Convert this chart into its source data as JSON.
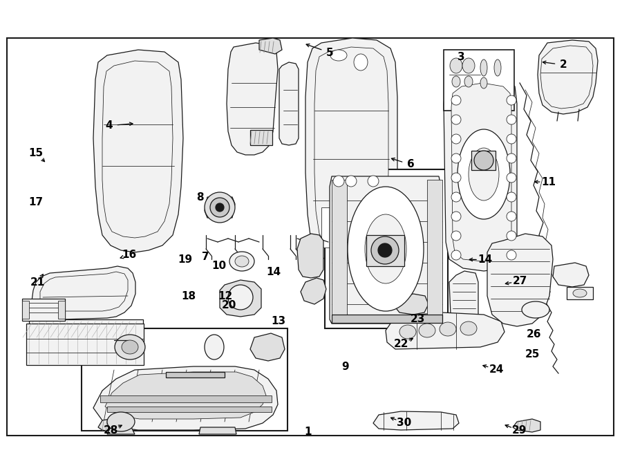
{
  "figsize": [
    9.0,
    6.61
  ],
  "dpi": 100,
  "bg_color": "#ffffff",
  "border_color": "#000000",
  "label_positions": {
    "1": [
      0.495,
      0.033,
      null,
      null
    ],
    "2": [
      0.906,
      0.858,
      0.875,
      0.858
    ],
    "3": [
      0.742,
      0.87,
      null,
      null
    ],
    "4": [
      0.175,
      0.735,
      0.215,
      0.735
    ],
    "5": [
      0.53,
      0.89,
      0.495,
      0.882
    ],
    "6": [
      0.66,
      0.672,
      0.628,
      0.68
    ],
    "7": [
      0.33,
      0.556,
      null,
      null
    ],
    "8": [
      0.322,
      0.63,
      null,
      null
    ],
    "9": [
      0.555,
      0.235,
      null,
      null
    ],
    "10": [
      0.352,
      0.556,
      null,
      null
    ],
    "11": [
      0.882,
      0.608,
      0.858,
      0.608
    ],
    "12": [
      0.362,
      0.51,
      null,
      null
    ],
    "13": [
      0.448,
      0.368,
      null,
      null
    ],
    "14a": [
      0.44,
      0.635,
      null,
      null
    ],
    "14b": [
      0.68,
      0.422,
      0.72,
      0.432
    ],
    "15": [
      0.058,
      0.693,
      0.075,
      0.71
    ],
    "16": [
      0.208,
      0.54,
      0.185,
      0.548
    ],
    "17": [
      0.058,
      0.588,
      null,
      null
    ],
    "18": [
      0.303,
      0.505,
      null,
      null
    ],
    "19": [
      0.298,
      0.568,
      null,
      null
    ],
    "20": [
      0.368,
      0.495,
      null,
      null
    ],
    "21": [
      0.06,
      0.412,
      0.07,
      0.432
    ],
    "22": [
      0.645,
      0.218,
      0.668,
      0.23
    ],
    "23": [
      0.672,
      0.302,
      null,
      null
    ],
    "24": [
      0.798,
      0.162,
      0.775,
      0.168
    ],
    "25": [
      0.856,
      0.198,
      null,
      null
    ],
    "26": [
      0.858,
      0.238,
      null,
      null
    ],
    "27": [
      0.836,
      0.328,
      0.808,
      0.338
    ],
    "28": [
      0.178,
      0.048,
      0.2,
      0.06
    ],
    "29": [
      0.835,
      0.042,
      0.808,
      0.052
    ],
    "30": [
      0.65,
      0.052,
      0.624,
      0.062
    ]
  }
}
